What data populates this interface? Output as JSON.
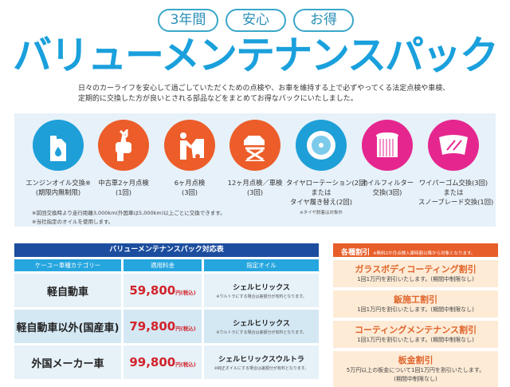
{
  "badges": [
    "3年間",
    "安心",
    "お得"
  ],
  "title": "バリューメンテナンスパック",
  "description": [
    "日々のカーライフを安心して過ごしていただくための点検や、お車を維持する上で必ずやってくる法定点検や車検、",
    "定期的に交換した方が良いとされる部品などをまとめてお得なパックにいたしました。"
  ],
  "services": [
    {
      "icon": "oil-can-icon",
      "color": "#1e9fd8",
      "lines": [
        "エンジンオイル交換※",
        "(期限内無制限)"
      ]
    },
    {
      "icon": "wrench-hand-icon",
      "color": "#ec5d2a",
      "lines": [
        "中古車2ヶ月点検",
        "(1回)"
      ]
    },
    {
      "icon": "mechanic-car-icon",
      "color": "#ec5d2a",
      "lines": [
        "6ヶ月点検",
        "(3回)"
      ]
    },
    {
      "icon": "car-lift-icon",
      "color": "#ec5d2a",
      "lines": [
        "12ヶ月点検／車検",
        "(3回)"
      ]
    },
    {
      "icon": "tire-icon",
      "color": "#1e9fd8",
      "lines": [
        "タイヤローテーション(2回)",
        "または",
        "タイヤ履き替え(2回)"
      ],
      "note": "※タイヤ脱着は対象外"
    },
    {
      "icon": "oil-filter-icon",
      "color": "#e5268f",
      "lines": [
        "オイルフィルター",
        "交換(3回)"
      ]
    },
    {
      "icon": "wiper-icon",
      "color": "#e5268f",
      "lines": [
        "ワイパーゴム交換(3回)",
        "または",
        "スノーブレード交換(1回)"
      ]
    }
  ],
  "footnotes": [
    "※前回交換時より走行距離3,000km(外国車は5,000km)以上ごとに交換できます。",
    "※当社指定のオイルを使用します。"
  ],
  "table": {
    "title": "バリューメンテナンスパック対応表",
    "headers": [
      "ケーユー車種カテゴリー",
      "適用料金",
      "指定オイル"
    ],
    "rows": [
      {
        "category": "軽自動車",
        "price": "59,800",
        "unit": "円(税込)",
        "oil": "シェルヒリックス",
        "note": "※ウルトラにする場合は差額分が有料となります。"
      },
      {
        "category": "軽自動車以外(国産車)",
        "price": "79,800",
        "unit": "円(税込)",
        "oil": "シェルヒリックス",
        "note": "※ウルトラにする場合は差額分が有料となります。"
      },
      {
        "category": "外国メーカー車",
        "price": "99,800",
        "unit": "円(税込)",
        "oil": "シェルヒリックスウルトラ",
        "note": "※純正オイルにする場合は差額分が有料となります。"
      }
    ]
  },
  "discounts": {
    "title": "各種割引",
    "note": "※無料2か月点検入庫時割以降から対象となります。",
    "items": [
      {
        "title": "ガラスボディコーティング割引",
        "lines": [
          "1回1万円を割引いたします。(期間中制限なし)"
        ]
      },
      {
        "title": "鈑施工割引",
        "lines": [
          "1回1万円を割引いたします。(期間中制限なし)"
        ]
      },
      {
        "title": "コーティングメンテナンス割引",
        "lines": [
          "1回1万円を割引いたします。(期間中制限なし)"
        ]
      },
      {
        "title": "板金割引",
        "lines": [
          "5万円以上の板金について1回1万円を割引いたします。",
          "(期間中制限なし)"
        ]
      }
    ]
  },
  "colors": {
    "title": "#1aa0dc",
    "table_title": "#1c4d9e",
    "table_header": "#26a6df",
    "price": "#d2232a",
    "discount": "#e85e2a"
  }
}
